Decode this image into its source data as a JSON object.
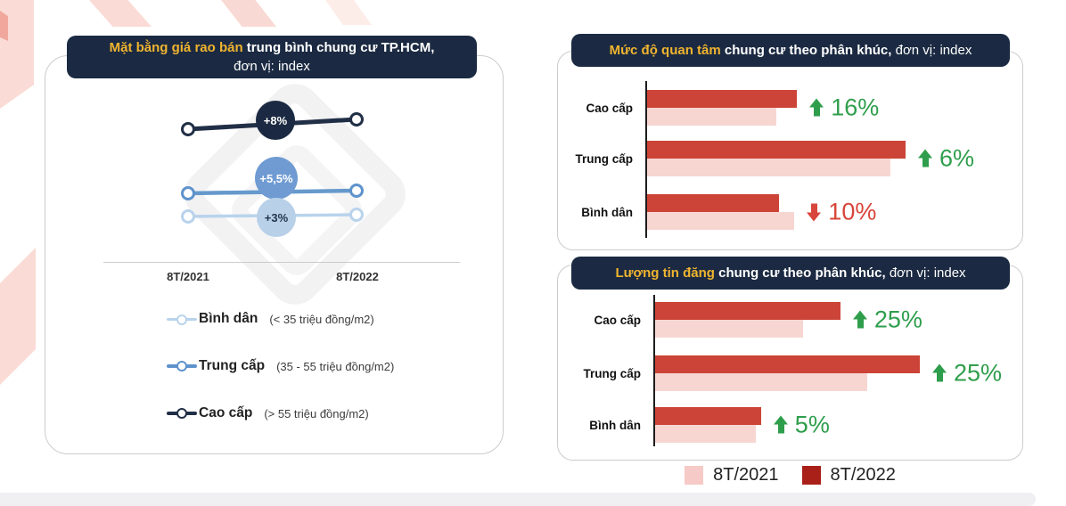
{
  "colors": {
    "header_bg": "#1b2a42",
    "header_highlight": "#f0b42f",
    "bar_2022": "#cc4437",
    "bar_2021": "#f7d6d2",
    "legend_2022_swatch": "#a92019",
    "legend_2021_swatch": "#f6cac6",
    "positive_green": "#2f9e4c",
    "negative_red": "#d8453a",
    "line_cao_cap": "#212f46",
    "line_trung_cap": "#6699cc",
    "line_binh_dan": "#b9d3ec"
  },
  "panels": {
    "price": {
      "title_highlight": "Mặt bằng giá rao bán",
      "title_bold": " trung bình chung cư TP.HCM,",
      "title_line2": "đơn vị: index"
    },
    "interest": {
      "title_highlight": "Mức độ quan tâm",
      "title_bold": " chung cư theo phân khúc,",
      "title_rest": " đơn vị: index"
    },
    "listings": {
      "title_highlight": "Lượng tin đăng",
      "title_bold": " chung cư theo phân khúc,",
      "title_rest": " đơn vị: index"
    }
  },
  "year_legend": {
    "label_2021": "8T/2021",
    "label_2022": "8T/2022"
  },
  "chart_data": [
    {
      "type": "line",
      "title": "Mặt bằng giá rao bán trung bình chung cư TP.HCM, đơn vị: index",
      "x": [
        "8T/2021",
        "8T/2022"
      ],
      "series": [
        {
          "name": "Cao cấp",
          "range_label": "(> 55 triệu đồng/m2)",
          "change": "+8%",
          "values_relative": [
            100,
            108
          ]
        },
        {
          "name": "Trung cấp",
          "range_label": "(35 - 55 triệu đồng/m2)",
          "change": "+5,5%",
          "values_relative": [
            100,
            105.5
          ]
        },
        {
          "name": "Bình dân",
          "range_label": "(< 35 triệu đồng/m2)",
          "change": "+3%",
          "values_relative": [
            100,
            103
          ]
        }
      ],
      "legend_position": "bottom"
    },
    {
      "type": "bar",
      "orientation": "horizontal",
      "title": "Mức độ quan tâm chung cư theo phân khúc, đơn vị: index",
      "categories": [
        "Cao cấp",
        "Trung cấp",
        "Bình dân"
      ],
      "series": [
        {
          "name": "8T/2021",
          "values": [
            50,
            94,
            57
          ]
        },
        {
          "name": "8T/2022",
          "values": [
            58,
            100,
            51
          ]
        }
      ],
      "changes": [
        "+16%",
        "+6%",
        "-10%"
      ],
      "pct_labels": [
        "16%",
        "6%",
        "10%"
      ],
      "dirs": [
        "up",
        "up",
        "down"
      ],
      "xlim": [
        0,
        110
      ],
      "grid": false,
      "legend_position": "bottom"
    },
    {
      "type": "bar",
      "orientation": "horizontal",
      "title": "Lượng tin đăng chung cư theo phân khúc, đơn vị: index",
      "categories": [
        "Cao cấp",
        "Trung cấp",
        "Bình dân"
      ],
      "series": [
        {
          "name": "8T/2021",
          "values": [
            56,
            80,
            38
          ]
        },
        {
          "name": "8T/2022",
          "values": [
            70,
            100,
            40
          ]
        }
      ],
      "changes": [
        "+25%",
        "+25%",
        "+5%"
      ],
      "pct_labels": [
        "25%",
        "25%",
        "5%"
      ],
      "dirs": [
        "up",
        "up",
        "up"
      ],
      "xlim": [
        0,
        110
      ],
      "grid": false,
      "legend_position": "bottom"
    }
  ]
}
